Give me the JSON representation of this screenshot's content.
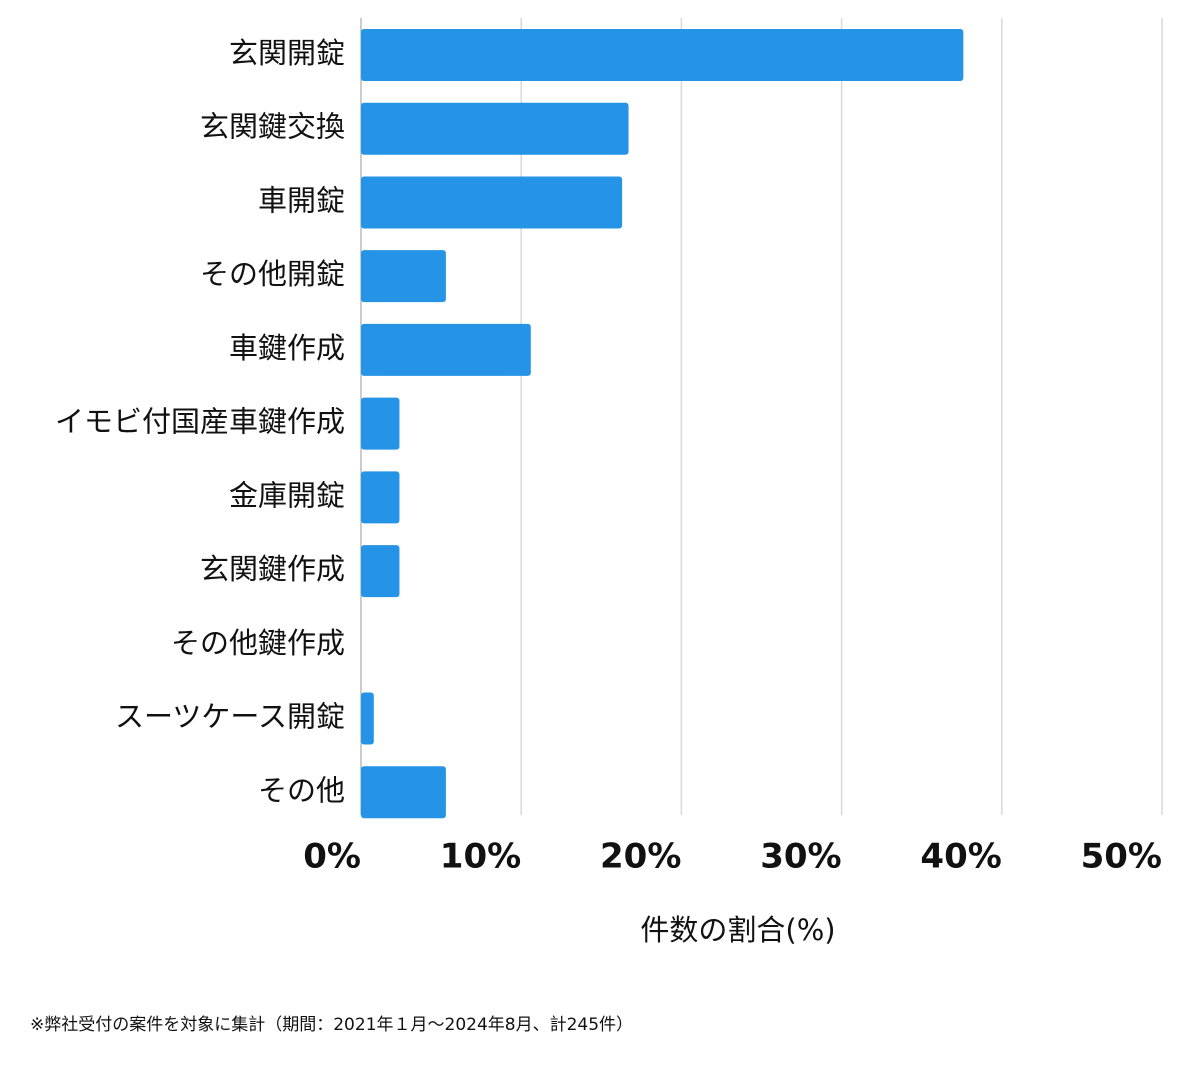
{
  "chart_data": {
    "type": "bar",
    "orientation": "horizontal",
    "categories": [
      "玄関開錠",
      "玄関鍵交換",
      "車開錠",
      "その他開錠",
      "車鍵作成",
      "イモビ付国産車鍵作成",
      "金庫開錠",
      "玄関鍵作成",
      "その他鍵作成",
      "スーツケース開錠",
      "その他"
    ],
    "values": [
      37.6,
      16.7,
      16.3,
      5.3,
      10.6,
      2.4,
      2.4,
      2.4,
      0,
      0.8,
      5.3
    ],
    "color": "#2594e6",
    "xlim": [
      0,
      50
    ],
    "xticks": [
      {
        "value": 0,
        "label": "0%"
      },
      {
        "value": 10,
        "label": "10%"
      },
      {
        "value": 20,
        "label": "20%"
      },
      {
        "value": 30,
        "label": "30%"
      },
      {
        "value": 40,
        "label": "40%"
      },
      {
        "value": 50,
        "label": "50%"
      }
    ],
    "xlabel": "件数の割合(%)",
    "grid": true,
    "footnote": "※弊社受付の案件を対象に集計（期間：2021年１月〜2024年8月、計245件）"
  }
}
